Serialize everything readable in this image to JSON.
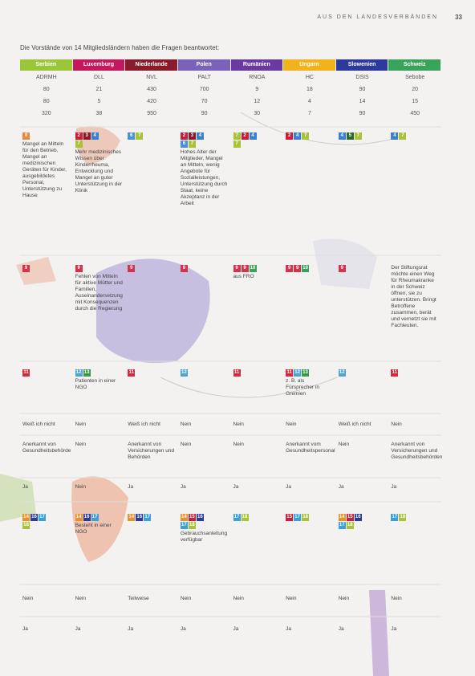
{
  "header": {
    "section": "AUS DEN LANDESVERBÄNDEN",
    "page": "33"
  },
  "intro": "Die Vorstände von 14 Mitgliedsländern haben die Fragen beantwortet:",
  "columns": [
    {
      "name": "Serbien",
      "abbr": "ADRMH",
      "color": "#9cc63a"
    },
    {
      "name": "Luxemburg",
      "abbr": "DLL",
      "color": "#c4175e"
    },
    {
      "name": "Niederlande",
      "abbr": "NVL",
      "color": "#8a1b2a"
    },
    {
      "name": "Polen",
      "abbr": "PALT",
      "color": "#7a62b8"
    },
    {
      "name": "Rumänien",
      "abbr": "RNOA",
      "color": "#6a3aa0"
    },
    {
      "name": "Ungarn",
      "abbr": "HC",
      "color": "#f2b21c"
    },
    {
      "name": "Slowenien",
      "abbr": "DSIS",
      "color": "#2b3a9c"
    },
    {
      "name": "Schweiz",
      "abbr": "Sebobe",
      "color": "#3aa35a"
    }
  ],
  "stats": [
    [
      "80",
      "21",
      "430",
      "700",
      "9",
      "18",
      "90",
      "20"
    ],
    [
      "80",
      "5",
      "420",
      "70",
      "12",
      "4",
      "14",
      "15"
    ],
    [
      "320",
      "38",
      "950",
      "90",
      "30",
      "7",
      "90",
      "450"
    ]
  ],
  "rows": [
    [
      {
        "badges": [
          "8"
        ],
        "text": "Mangel an Mitteln für den Betrieb, Mangel an medizinischen Geräten für Kinder, ausgebildetes Personal, Unterstützung zu Hause"
      },
      {
        "badges": [
          "2",
          "3",
          "4",
          "7"
        ],
        "text": "Mehr medizinisches Wissen über Kinderrheuma, Entwicklung und Mangel an guter Unterstützung in der Klinik"
      },
      {
        "badges": [
          "6",
          "7"
        ]
      },
      {
        "badges": [
          "2",
          "3",
          "4",
          "6",
          "7"
        ],
        "text": "Hohes Alter der Mitglieder, Mangel an Mitteln, wenig Angebote für Sozialleistungen, Unterstützung durch Staat, keine Akzeptanz in der Arbeit"
      },
      {
        "badges": [
          "7",
          "2",
          "4",
          "7"
        ]
      },
      {
        "badges": [
          "2",
          "4",
          "7"
        ]
      },
      {
        "badges": [
          "4",
          "5",
          "7"
        ]
      },
      {
        "badges": [
          "4",
          "7"
        ]
      }
    ],
    [
      {
        "badges": [
          "9"
        ]
      },
      {
        "badges": [
          "9"
        ],
        "text": "Fehlen von Mitteln für aktive Mütter und Familien, Auseinandersetzung mit Konsequenzen durch die Regierung"
      },
      {
        "badges": [
          "9"
        ]
      },
      {
        "badges": [
          "9"
        ]
      },
      {
        "badges": [
          "9",
          "9",
          "10"
        ],
        "text": "aus FRO"
      },
      {
        "badges": [
          "9",
          "9",
          "10"
        ]
      },
      {
        "badges": [
          "9"
        ]
      },
      {
        "text": "Der Stiftungsrat möchte einen Weg für Rheumakranke in der Schweiz öffnen, sie zu unterstützen. Bringt Betroffene zusammen, berät und vernetzt sie mit Fachleuten."
      }
    ],
    [
      {
        "badges": [
          "11"
        ]
      },
      {
        "badges": [
          "12",
          "13"
        ],
        "text": "Patienten in einer NGO"
      },
      {
        "badges": [
          "11"
        ]
      },
      {
        "badges": [
          "12"
        ]
      },
      {
        "badges": [
          "11"
        ]
      },
      {
        "badges": [
          "11",
          "12",
          "13"
        ],
        "text": "z. B. als Fürsprecher in Gremien"
      },
      {
        "badges": [
          "12"
        ]
      },
      {
        "badges": [
          "11"
        ]
      }
    ],
    [
      {
        "text": "Weiß ich nicht"
      },
      {
        "text": "Nein"
      },
      {
        "text": "Weiß ich nicht"
      },
      {
        "text": "Nein"
      },
      {
        "text": "Nein"
      },
      {
        "text": "Nein"
      },
      {
        "text": "Weiß ich nicht"
      },
      {
        "text": "Nein"
      }
    ],
    [
      {
        "text": "Anerkannt von Gesundheitsbehörde"
      },
      {
        "text": "Nein"
      },
      {
        "text": "Anerkannt von Versicherungen und Behörden"
      },
      {
        "text": "Nein"
      },
      {
        "text": "Nein"
      },
      {
        "text": "Anerkannt vom Gesundheitspersonal"
      },
      {
        "text": "Nein"
      },
      {
        "text": "Anerkannt von Versicherungen und Gesundheitsbehörden"
      }
    ],
    [
      {
        "text": "Ja"
      },
      {
        "text": "Nein"
      },
      {
        "text": "Ja"
      },
      {
        "text": "Ja"
      },
      {
        "text": "Ja"
      },
      {
        "text": "Ja"
      },
      {
        "text": "Ja"
      },
      {
        "text": "Ja"
      }
    ],
    [
      {
        "badges": [
          "14",
          "16",
          "17",
          "18"
        ]
      },
      {
        "badges": [
          "14",
          "16",
          "17"
        ],
        "text": "Besteht in einer NGO"
      },
      {
        "badges": [
          "14",
          "16",
          "17"
        ]
      },
      {
        "badges": [
          "14",
          "15",
          "16",
          "17",
          "18"
        ],
        "text": "Gebrauchsanleitung verfügbar"
      },
      {
        "badges": [
          "17",
          "18"
        ]
      },
      {
        "badges": [
          "15",
          "17",
          "18"
        ]
      },
      {
        "badges": [
          "14",
          "15",
          "16",
          "17",
          "18"
        ]
      },
      {
        "badges": [
          "17",
          "18"
        ]
      }
    ],
    [
      {
        "text": "Nein"
      },
      {
        "text": "Nein"
      },
      {
        "text": "Teilweise"
      },
      {
        "text": "Nein"
      },
      {
        "text": "Nein"
      },
      {
        "text": "Nein"
      },
      {
        "text": "Nein"
      },
      {
        "text": "Nein"
      }
    ],
    [
      {
        "text": "Ja"
      },
      {
        "text": "Ja"
      },
      {
        "text": "Ja"
      },
      {
        "text": "Ja"
      },
      {
        "text": "Ja"
      },
      {
        "text": "Ja"
      },
      {
        "text": "Ja"
      },
      {
        "text": "Ja"
      }
    ]
  ]
}
